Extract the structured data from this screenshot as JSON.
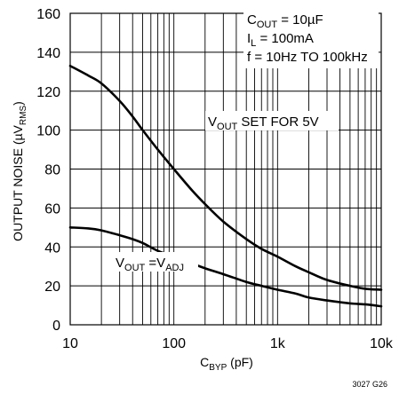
{
  "chart_data": {
    "type": "line",
    "x_scale": "log",
    "xlim": [
      10,
      10000
    ],
    "ylim": [
      0,
      160
    ],
    "grid": true,
    "xlabel": {
      "main": "C",
      "sub": "BYP",
      "rest": " (pF)"
    },
    "ylabel": {
      "main": "OUTPUT NOISE (µV",
      "sub": "RMS",
      "rest": ")"
    },
    "x_tick_labels": [
      {
        "value": 10,
        "label": "10"
      },
      {
        "value": 100,
        "label": "100"
      },
      {
        "value": 1000,
        "label": "1k"
      },
      {
        "value": 10000,
        "label": "10k"
      }
    ],
    "y_tick_labels": [
      {
        "value": 0,
        "label": "0"
      },
      {
        "value": 20,
        "label": "20"
      },
      {
        "value": 40,
        "label": "40"
      },
      {
        "value": 60,
        "label": "60"
      },
      {
        "value": 80,
        "label": "80"
      },
      {
        "value": 100,
        "label": "100"
      },
      {
        "value": 120,
        "label": "120"
      },
      {
        "value": 140,
        "label": "140"
      },
      {
        "value": 160,
        "label": "160"
      }
    ],
    "conditions": [
      {
        "main": "C",
        "sub": "OUT",
        "rest": " = 10µF"
      },
      {
        "main": "I",
        "sub": "L",
        "rest": " = 100mA"
      },
      {
        "main": "f = 10Hz TO 100kHz",
        "sub": "",
        "rest": ""
      }
    ],
    "series": [
      {
        "label": {
          "a": "V",
          "a_sub": "OUT",
          "b": " SET FOR 5V",
          "b_sub": ""
        },
        "points": [
          [
            10,
            133
          ],
          [
            15,
            128
          ],
          [
            20,
            124
          ],
          [
            30,
            115
          ],
          [
            40,
            107
          ],
          [
            50,
            100
          ],
          [
            70,
            90
          ],
          [
            100,
            80
          ],
          [
            150,
            69
          ],
          [
            200,
            62
          ],
          [
            300,
            53
          ],
          [
            500,
            44
          ],
          [
            700,
            39
          ],
          [
            1000,
            35
          ],
          [
            1500,
            30
          ],
          [
            2000,
            27
          ],
          [
            3000,
            23
          ],
          [
            5000,
            20
          ],
          [
            7000,
            18.5
          ],
          [
            10000,
            18
          ]
        ]
      },
      {
        "label": {
          "a": "V",
          "a_sub": "OUT",
          "b": " =V",
          "b_sub": "ADJ"
        },
        "points": [
          [
            10,
            50
          ],
          [
            15,
            49.5
          ],
          [
            20,
            48.5
          ],
          [
            30,
            46
          ],
          [
            40,
            44
          ],
          [
            50,
            42
          ],
          [
            70,
            38
          ],
          [
            100,
            35
          ],
          [
            150,
            31.5
          ],
          [
            200,
            29
          ],
          [
            300,
            26
          ],
          [
            500,
            22
          ],
          [
            700,
            20
          ],
          [
            1000,
            18
          ],
          [
            1500,
            16
          ],
          [
            2000,
            14
          ],
          [
            3000,
            12.5
          ],
          [
            5000,
            11
          ],
          [
            7000,
            10.5
          ],
          [
            10000,
            9.5
          ]
        ]
      }
    ]
  },
  "figure_id": "3027 G26"
}
